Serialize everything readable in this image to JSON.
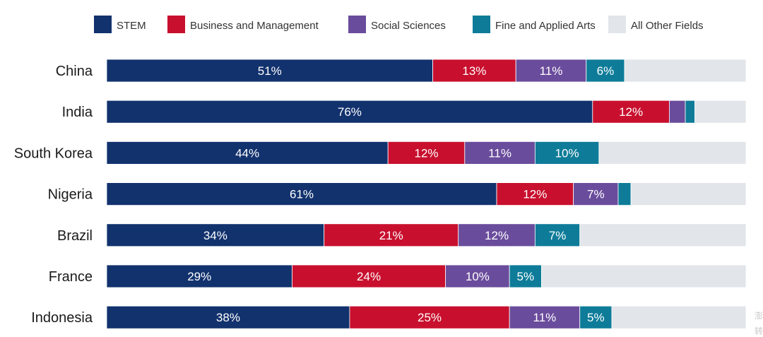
{
  "colors": {
    "stem": "#12326e",
    "business": "#c8102e",
    "social": "#6a4c9c",
    "arts": "#0e7c99",
    "other": "#e2e5e9"
  },
  "watermark": [
    "澎",
    "转"
  ],
  "chart_data": {
    "type": "bar",
    "orientation": "horizontal",
    "stacked": true,
    "title": "",
    "xlabel": "",
    "ylabel": "",
    "xlim": [
      0,
      100
    ],
    "unit": "%",
    "legend_position": "top",
    "categories": [
      "China",
      "India",
      "South Korea",
      "Nigeria",
      "Brazil",
      "France",
      "Indonesia"
    ],
    "series": [
      {
        "key": "stem",
        "name": "STEM",
        "values": [
          51,
          76,
          44,
          61,
          34,
          29,
          38
        ]
      },
      {
        "key": "business",
        "name": "Business and Management",
        "values": [
          13,
          12,
          12,
          12,
          21,
          24,
          25
        ]
      },
      {
        "key": "social",
        "name": "Social Sciences",
        "values": [
          11,
          2.5,
          11,
          7,
          12,
          10,
          11
        ]
      },
      {
        "key": "arts",
        "name": "Fine and Applied Arts",
        "values": [
          6,
          1.5,
          10,
          2,
          7,
          5,
          5
        ]
      },
      {
        "key": "other",
        "name": "All Other Fields",
        "values": [
          19,
          8,
          23,
          18,
          26,
          32,
          21
        ]
      }
    ],
    "data_labels": [
      [
        "51%",
        "76%",
        "44%",
        "61%",
        "34%",
        "29%",
        "38%"
      ],
      [
        "13%",
        "12%",
        "12%",
        "12%",
        "21%",
        "24%",
        "25%"
      ],
      [
        "11%",
        "",
        "11%",
        "7%",
        "12%",
        "10%",
        "11%"
      ],
      [
        "6%",
        "",
        "10%",
        "",
        "7%",
        "5%",
        "5%"
      ],
      [
        "",
        "",
        "",
        "",
        "",
        "",
        ""
      ]
    ]
  }
}
